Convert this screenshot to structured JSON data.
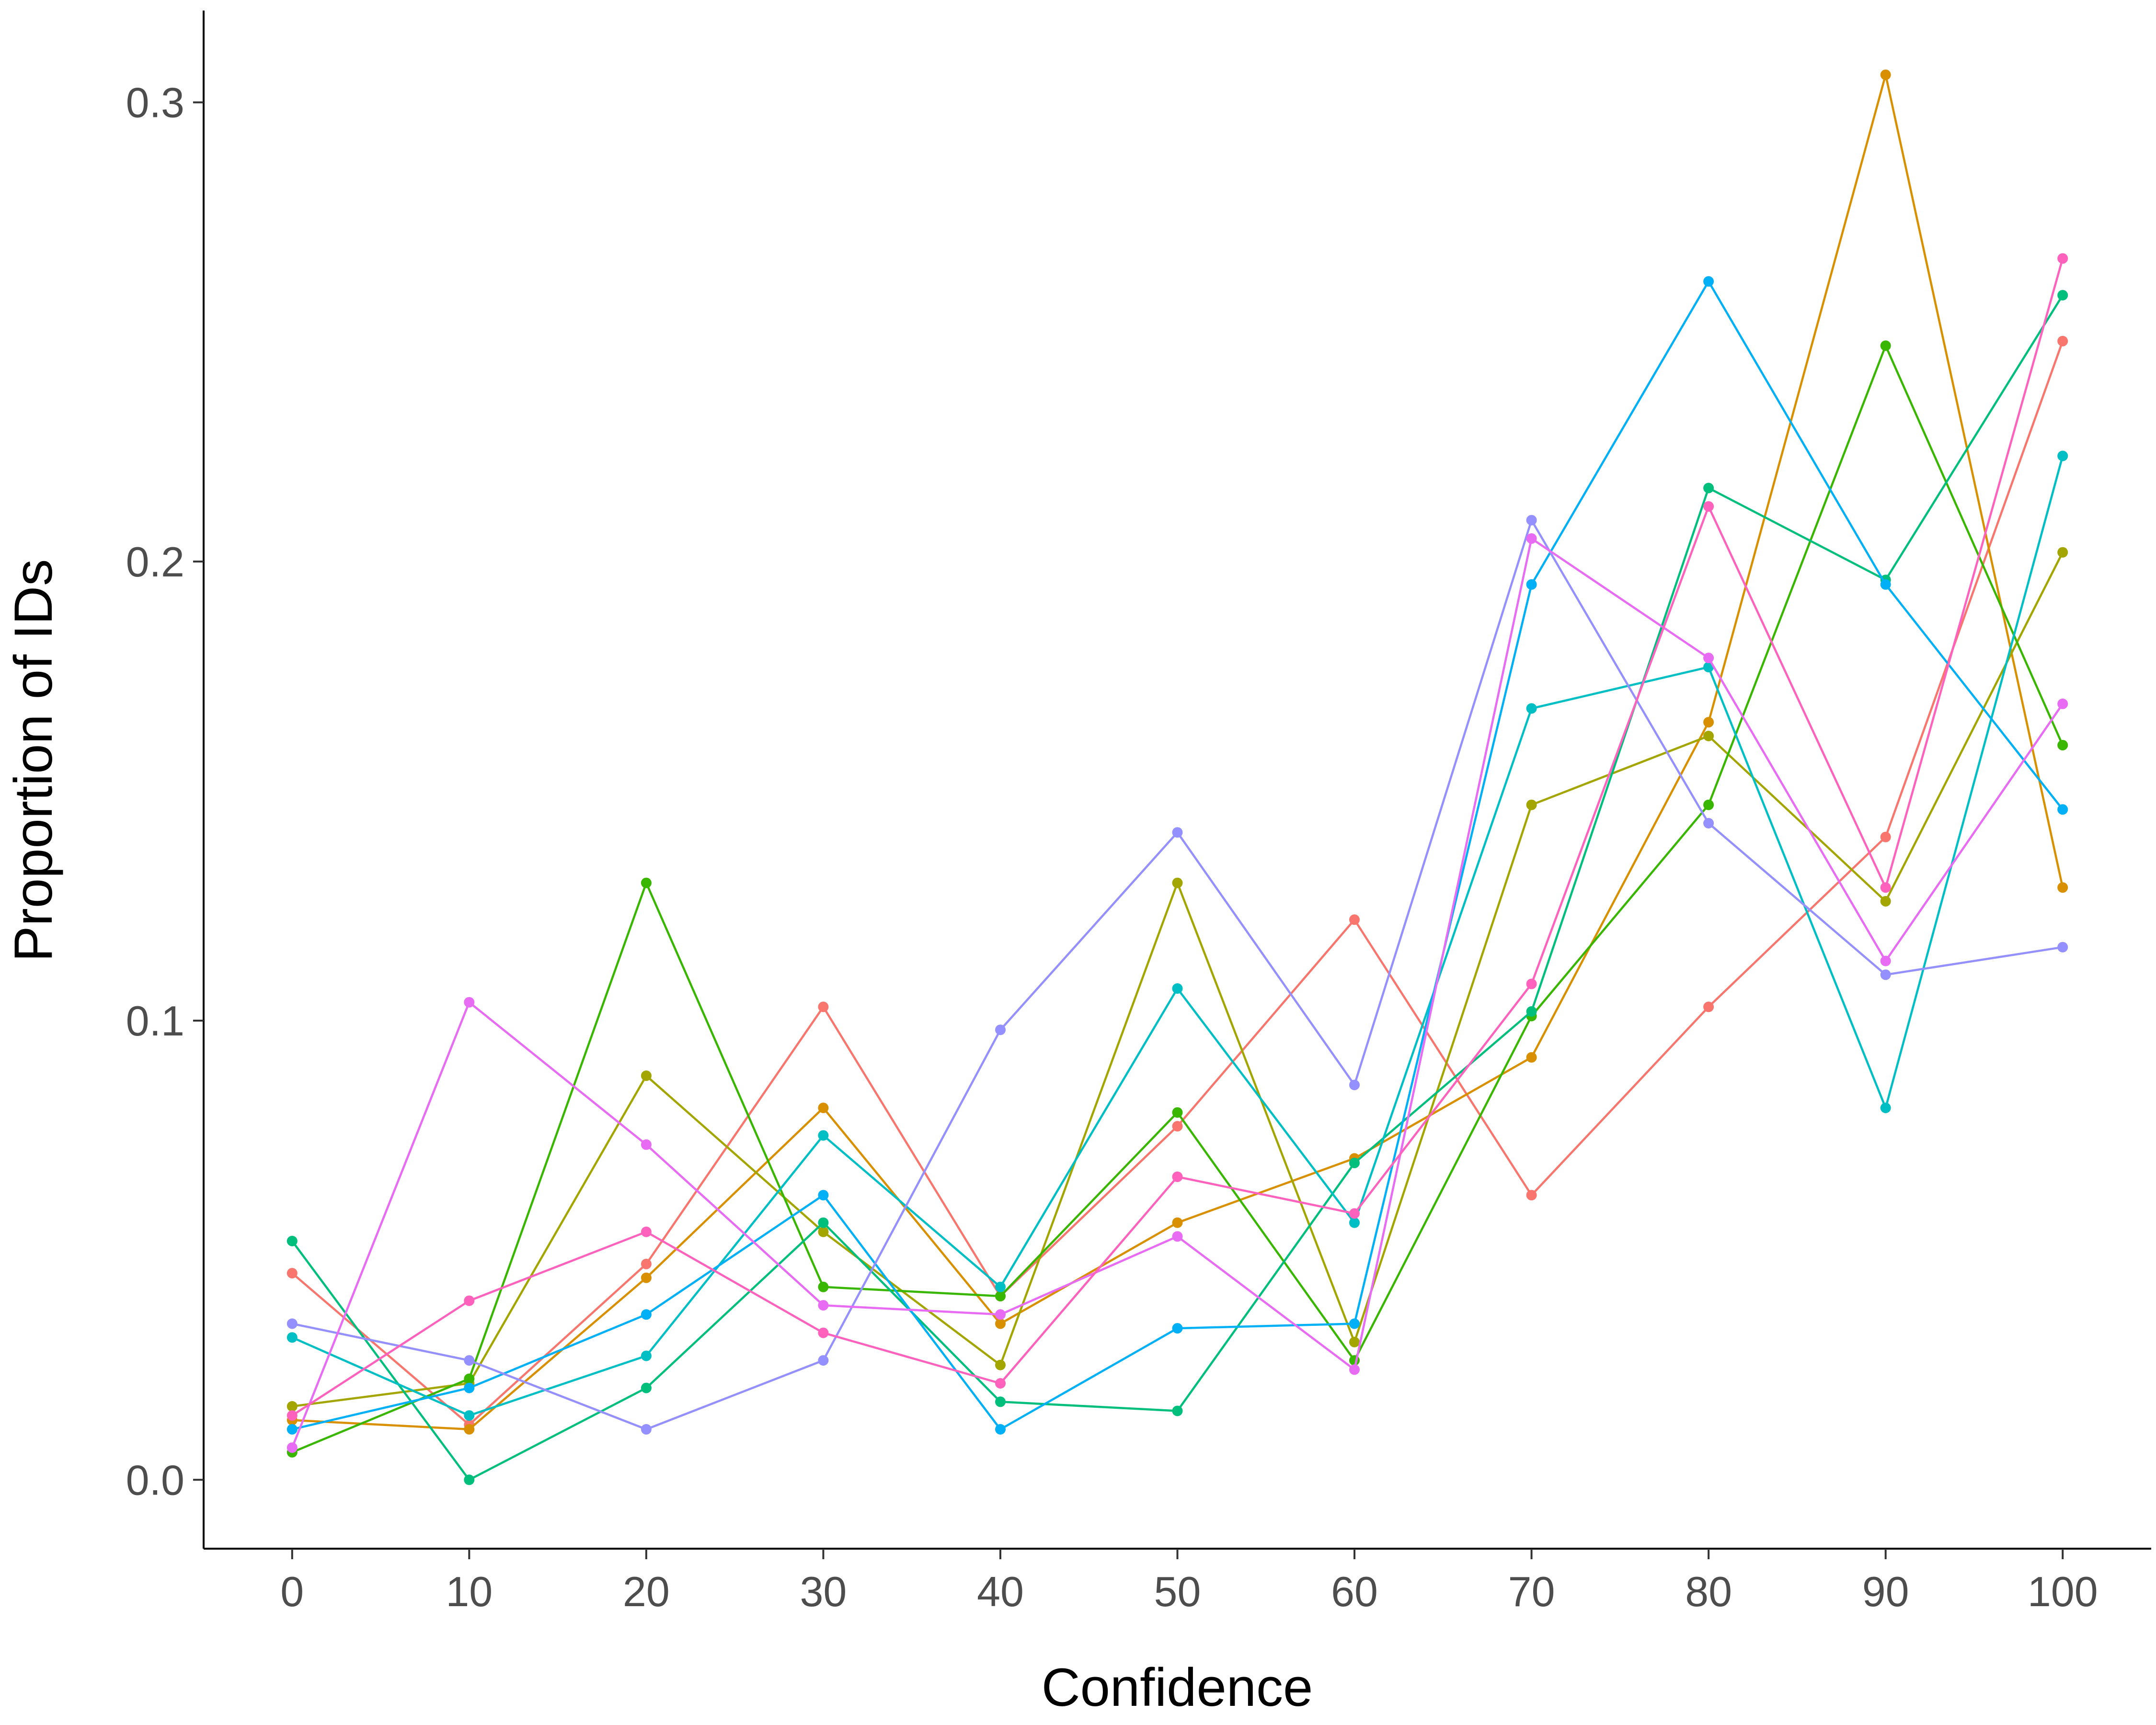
{
  "chart_data": {
    "type": "line",
    "title": "",
    "xlabel": "Confidence",
    "ylabel": "Proportion of IDs",
    "x": [
      0,
      10,
      20,
      30,
      40,
      50,
      60,
      70,
      80,
      90,
      100
    ],
    "xlim": [
      -5,
      105
    ],
    "ylim": [
      -0.015,
      0.32
    ],
    "x_ticks": [
      "0",
      "10",
      "20",
      "30",
      "40",
      "50",
      "60",
      "70",
      "80",
      "90",
      "100"
    ],
    "y_ticks": [
      {
        "value": 0.0,
        "label": "0.0"
      },
      {
        "value": 0.1,
        "label": "0.1"
      },
      {
        "value": 0.2,
        "label": "0.2"
      },
      {
        "value": 0.3,
        "label": "0.3"
      }
    ],
    "grid": false,
    "legend": "none",
    "series": [
      {
        "color": "#F8766D",
        "values": [
          0.045,
          0.012,
          0.047,
          0.103,
          0.04,
          0.077,
          0.122,
          0.062,
          0.103,
          0.14,
          0.248
        ]
      },
      {
        "color": "#D89000",
        "values": [
          0.013,
          0.011,
          0.044,
          0.081,
          0.034,
          0.056,
          0.07,
          0.092,
          0.165,
          0.306,
          0.129
        ]
      },
      {
        "color": "#A3A500",
        "values": [
          0.016,
          0.021,
          0.088,
          0.054,
          0.025,
          0.13,
          0.03,
          0.147,
          0.162,
          0.126,
          0.202
        ]
      },
      {
        "color": "#39B600",
        "values": [
          0.006,
          0.022,
          0.13,
          0.042,
          0.04,
          0.08,
          0.026,
          0.101,
          0.147,
          0.247,
          0.16
        ]
      },
      {
        "color": "#00BF7D",
        "values": [
          0.052,
          0.0,
          0.02,
          0.056,
          0.017,
          0.015,
          0.069,
          0.102,
          0.216,
          0.196,
          0.258
        ]
      },
      {
        "color": "#00BFC4",
        "values": [
          0.031,
          0.014,
          0.027,
          0.075,
          0.042,
          0.107,
          0.056,
          0.168,
          0.177,
          0.081,
          0.223
        ]
      },
      {
        "color": "#00B0F6",
        "values": [
          0.011,
          0.02,
          0.036,
          0.062,
          0.011,
          0.033,
          0.034,
          0.195,
          0.261,
          0.195,
          0.146
        ]
      },
      {
        "color": "#9590FF",
        "values": [
          0.034,
          0.026,
          0.011,
          0.026,
          0.098,
          0.141,
          0.086,
          0.209,
          0.143,
          0.11,
          0.116
        ]
      },
      {
        "color": "#E76BF3",
        "values": [
          0.007,
          0.104,
          0.073,
          0.038,
          0.036,
          0.053,
          0.024,
          0.205,
          0.179,
          0.113,
          0.169
        ]
      },
      {
        "color": "#FF62BC",
        "values": [
          0.014,
          0.039,
          0.054,
          0.032,
          0.021,
          0.066,
          0.058,
          0.108,
          0.212,
          0.129,
          0.266
        ]
      }
    ]
  }
}
